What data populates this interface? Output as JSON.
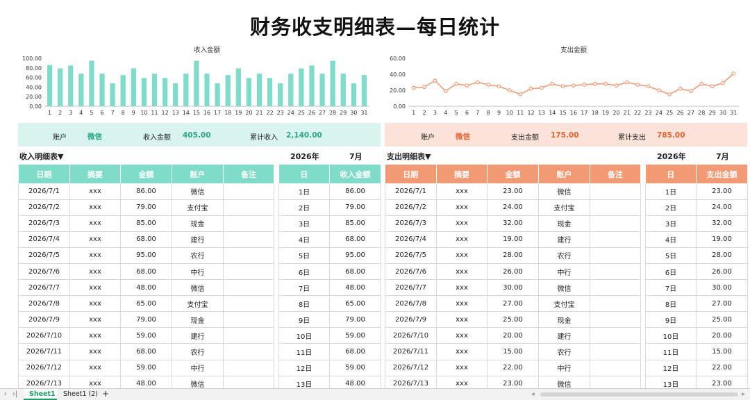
{
  "title": "财务收支明细表—每日统计",
  "income_chart": {
    "chart_data": {
      "type": "bar",
      "title": "收入金额",
      "categories": [
        "1",
        "2",
        "3",
        "4",
        "5",
        "6",
        "7",
        "8",
        "9",
        "10",
        "11",
        "12",
        "13",
        "14",
        "15",
        "16",
        "17",
        "18",
        "19",
        "20",
        "21",
        "22",
        "23",
        "24",
        "25",
        "26",
        "27",
        "28",
        "29",
        "30",
        "31"
      ],
      "values": [
        86,
        79,
        85,
        68,
        95,
        68,
        48,
        65,
        79,
        59,
        68,
        59,
        48,
        68,
        95,
        68,
        48,
        65,
        79,
        59,
        68,
        59,
        48,
        68,
        79,
        85,
        68,
        95,
        68,
        48,
        65
      ],
      "ylim": [
        0,
        100
      ],
      "yticks": [
        "0.00",
        "20.00",
        "40.00",
        "60.00",
        "80.00",
        "100.00"
      ],
      "color": "#7fdcc8"
    }
  },
  "expense_chart": {
    "chart_data": {
      "type": "line",
      "title": "支出金额",
      "categories": [
        "1",
        "2",
        "3",
        "4",
        "5",
        "6",
        "7",
        "8",
        "9",
        "10",
        "11",
        "12",
        "13",
        "14",
        "15",
        "16",
        "17",
        "18",
        "19",
        "20",
        "21",
        "22",
        "23",
        "24",
        "25",
        "26",
        "27",
        "28",
        "29",
        "30",
        "31"
      ],
      "values": [
        23,
        24,
        32,
        19,
        28,
        26,
        30,
        27,
        25,
        20,
        15,
        22,
        23,
        28,
        25,
        26,
        27,
        28,
        28,
        26,
        30,
        27,
        25,
        20,
        15,
        22,
        19,
        28,
        25,
        29,
        41
      ],
      "ylim": [
        0,
        60
      ],
      "yticks": [
        "0.00",
        "20.00",
        "40.00",
        "60.00"
      ],
      "color": "#f29a73"
    }
  },
  "income_summary": {
    "account_label": "账户",
    "account_value": "微信",
    "amount_label": "收入金额",
    "amount_value": "405.00",
    "total_label": "累计收入",
    "total_value": "2,140.00",
    "bg": "#d9f4ee",
    "accent": "#2aa889"
  },
  "expense_summary": {
    "account_label": "账户",
    "account_value": "微信",
    "amount_label": "支出金额",
    "amount_value": "175.00",
    "total_label": "累计支出",
    "total_value": "785.00",
    "bg": "#fbe3da",
    "accent": "#e8632f"
  },
  "income_section": {
    "title": "收入明细表▼",
    "year": "2026年",
    "month": "7月"
  },
  "expense_section": {
    "title": "支出明细表▼",
    "year": "2026年",
    "month": "7月"
  },
  "detail_headers": [
    "日期",
    "摘要",
    "金额",
    "账户",
    "备注"
  ],
  "income_daily_headers": [
    "日",
    "收入金额"
  ],
  "expense_daily_headers": [
    "日",
    "支出金额"
  ],
  "income_rows": [
    [
      "2026/7/1",
      "xxx",
      "86.00",
      "微信",
      ""
    ],
    [
      "2026/7/2",
      "xxx",
      "79.00",
      "支付宝",
      ""
    ],
    [
      "2026/7/3",
      "xxx",
      "85.00",
      "现金",
      ""
    ],
    [
      "2026/7/4",
      "xxx",
      "68.00",
      "建行",
      ""
    ],
    [
      "2026/7/5",
      "xxx",
      "95.00",
      "农行",
      ""
    ],
    [
      "2026/7/6",
      "xxx",
      "68.00",
      "中行",
      ""
    ],
    [
      "2026/7/7",
      "xxx",
      "48.00",
      "微信",
      ""
    ],
    [
      "2026/7/8",
      "xxx",
      "65.00",
      "支付宝",
      ""
    ],
    [
      "2026/7/9",
      "xxx",
      "79.00",
      "现金",
      ""
    ],
    [
      "2026/7/10",
      "xxx",
      "59.00",
      "建行",
      ""
    ],
    [
      "2026/7/11",
      "xxx",
      "68.00",
      "农行",
      ""
    ],
    [
      "2026/7/12",
      "xxx",
      "59.00",
      "中行",
      ""
    ],
    [
      "2026/7/13",
      "xxx",
      "48.00",
      "微信",
      ""
    ]
  ],
  "income_daily": [
    [
      "1日",
      "86.00"
    ],
    [
      "2日",
      "79.00"
    ],
    [
      "3日",
      "85.00"
    ],
    [
      "4日",
      "68.00"
    ],
    [
      "5日",
      "95.00"
    ],
    [
      "6日",
      "68.00"
    ],
    [
      "7日",
      "48.00"
    ],
    [
      "8日",
      "65.00"
    ],
    [
      "9日",
      "79.00"
    ],
    [
      "10日",
      "59.00"
    ],
    [
      "11日",
      "68.00"
    ],
    [
      "12日",
      "59.00"
    ],
    [
      "13日",
      "48.00"
    ]
  ],
  "expense_rows": [
    [
      "2026/7/1",
      "xxx",
      "23.00",
      "微信",
      ""
    ],
    [
      "2026/7/2",
      "xxx",
      "24.00",
      "支付宝",
      ""
    ],
    [
      "2026/7/3",
      "xxx",
      "32.00",
      "现金",
      ""
    ],
    [
      "2026/7/4",
      "xxx",
      "19.00",
      "建行",
      ""
    ],
    [
      "2026/7/5",
      "xxx",
      "28.00",
      "农行",
      ""
    ],
    [
      "2026/7/6",
      "xxx",
      "26.00",
      "中行",
      ""
    ],
    [
      "2026/7/7",
      "xxx",
      "30.00",
      "微信",
      ""
    ],
    [
      "2026/7/8",
      "xxx",
      "27.00",
      "支付宝",
      ""
    ],
    [
      "2026/7/9",
      "xxx",
      "25.00",
      "现金",
      ""
    ],
    [
      "2026/7/10",
      "xxx",
      "20.00",
      "建行",
      ""
    ],
    [
      "2026/7/11",
      "xxx",
      "15.00",
      "农行",
      ""
    ],
    [
      "2026/7/12",
      "xxx",
      "22.00",
      "中行",
      ""
    ],
    [
      "2026/7/13",
      "xxx",
      "23.00",
      "微信",
      ""
    ]
  ],
  "expense_daily": [
    [
      "1日",
      "23.00"
    ],
    [
      "2日",
      "24.00"
    ],
    [
      "3日",
      "32.00"
    ],
    [
      "4日",
      "19.00"
    ],
    [
      "5日",
      "28.00"
    ],
    [
      "6日",
      "26.00"
    ],
    [
      "7日",
      "30.00"
    ],
    [
      "8日",
      "27.00"
    ],
    [
      "9日",
      "25.00"
    ],
    [
      "10日",
      "20.00"
    ],
    [
      "11日",
      "15.00"
    ],
    [
      "12日",
      "22.00"
    ],
    [
      "13日",
      "23.00"
    ]
  ],
  "tabs": {
    "nav_prev": "›",
    "nav_last": "›|",
    "sheet1": "Sheet1",
    "sheet2": "Sheet1 (2)",
    "add": "+",
    "scroll_left": "◂",
    "scroll_right": "▸"
  }
}
